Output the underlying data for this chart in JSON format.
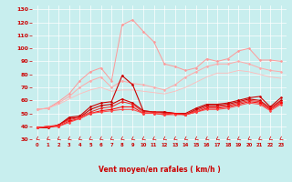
{
  "x": [
    0,
    1,
    2,
    3,
    4,
    5,
    6,
    7,
    8,
    9,
    10,
    11,
    12,
    13,
    14,
    15,
    16,
    17,
    18,
    19,
    20,
    21,
    22,
    23
  ],
  "series": [
    {
      "color": "#ff9999",
      "lw": 0.7,
      "marker": "D",
      "ms": 1.5,
      "y": [
        53,
        54,
        59,
        65,
        75,
        82,
        85,
        75,
        118,
        122,
        113,
        105,
        88,
        86,
        83,
        85,
        92,
        90,
        92,
        98,
        100,
        91,
        91,
        90
      ]
    },
    {
      "color": "#ffaaaa",
      "lw": 0.7,
      "marker": "D",
      "ms": 1.5,
      "y": [
        53,
        54,
        58,
        63,
        70,
        75,
        78,
        70,
        75,
        73,
        72,
        70,
        68,
        72,
        78,
        82,
        86,
        88,
        88,
        90,
        88,
        85,
        83,
        82
      ]
    },
    {
      "color": "#ffbbbb",
      "lw": 0.6,
      "marker": null,
      "ms": 0,
      "y": [
        53,
        54,
        57,
        61,
        65,
        68,
        70,
        67,
        68,
        68,
        67,
        66,
        65,
        67,
        70,
        74,
        78,
        81,
        81,
        83,
        82,
        80,
        78,
        77
      ]
    },
    {
      "color": "#cc0000",
      "lw": 0.8,
      "marker": "D",
      "ms": 1.5,
      "y": [
        39,
        39,
        41,
        47,
        48,
        55,
        58,
        59,
        79,
        72,
        52,
        51,
        51,
        50,
        50,
        54,
        57,
        57,
        58,
        60,
        62,
        63,
        55,
        62
      ]
    },
    {
      "color": "#cc0000",
      "lw": 0.8,
      "marker": "D",
      "ms": 1.5,
      "y": [
        39,
        39,
        41,
        46,
        47,
        53,
        56,
        57,
        61,
        58,
        52,
        51,
        51,
        50,
        49,
        53,
        56,
        56,
        57,
        59,
        61,
        60,
        54,
        60
      ]
    },
    {
      "color": "#ee2222",
      "lw": 0.7,
      "marker": "D",
      "ms": 1.5,
      "y": [
        39,
        40,
        41,
        45,
        47,
        51,
        54,
        55,
        59,
        57,
        51,
        51,
        50,
        50,
        49,
        52,
        55,
        55,
        56,
        58,
        60,
        59,
        54,
        59
      ]
    },
    {
      "color": "#ff0000",
      "lw": 0.7,
      "marker": "D",
      "ms": 1.5,
      "y": [
        39,
        40,
        40,
        44,
        46,
        50,
        52,
        53,
        55,
        55,
        50,
        50,
        49,
        50,
        49,
        51,
        54,
        54,
        55,
        57,
        59,
        58,
        53,
        58
      ]
    },
    {
      "color": "#ff4444",
      "lw": 0.7,
      "marker": "D",
      "ms": 1.5,
      "y": [
        39,
        40,
        40,
        43,
        46,
        50,
        51,
        52,
        53,
        53,
        50,
        50,
        49,
        49,
        49,
        51,
        53,
        53,
        54,
        56,
        58,
        57,
        52,
        57
      ]
    }
  ],
  "xlim": [
    -0.5,
    23.5
  ],
  "ylim": [
    28,
    133
  ],
  "yticks": [
    30,
    40,
    50,
    60,
    70,
    80,
    90,
    100,
    110,
    120,
    130
  ],
  "xticks": [
    0,
    1,
    2,
    3,
    4,
    5,
    6,
    7,
    8,
    9,
    10,
    11,
    12,
    13,
    14,
    15,
    16,
    17,
    18,
    19,
    20,
    21,
    22,
    23
  ],
  "xlabel": "Vent moyen/en rafales ( km/h )",
  "bg_color": "#c8eeee",
  "grid_color": "#ffffff",
  "tick_color": "#cc0000",
  "label_color": "#cc0000",
  "xlabel_color": "#cc0000",
  "figsize": [
    3.2,
    2.0
  ],
  "dpi": 100
}
